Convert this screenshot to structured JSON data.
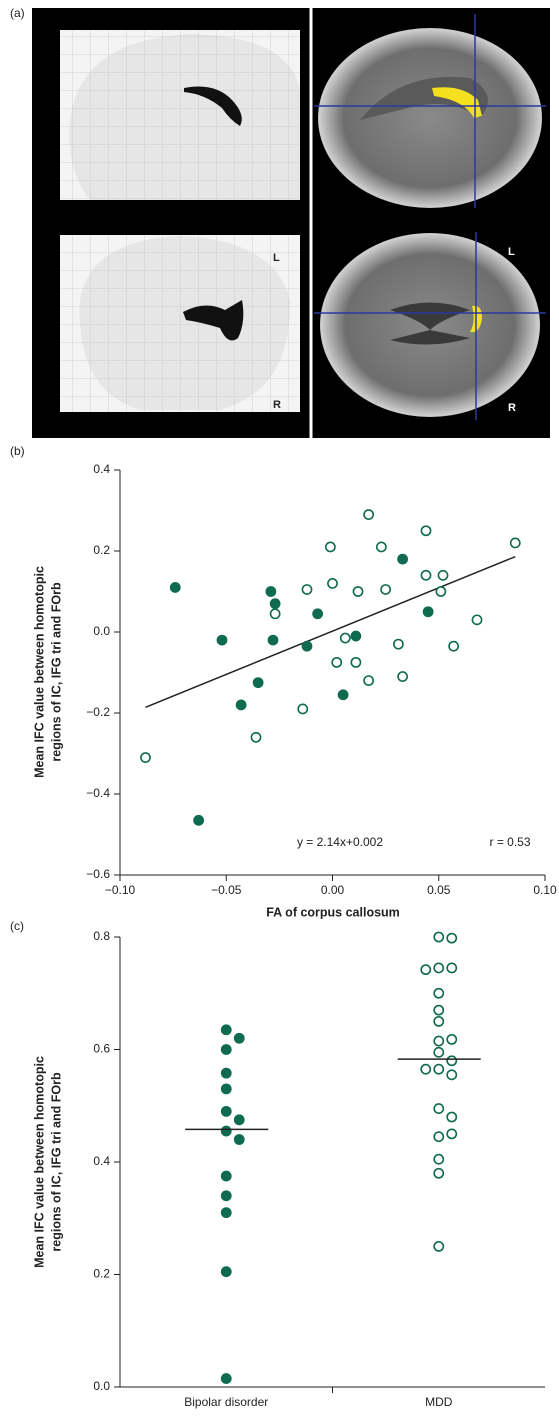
{
  "figure": {
    "panels": [
      "(a)",
      "(b)",
      "(c)"
    ],
    "image_labels": [
      "L",
      "R",
      "L",
      "R"
    ]
  },
  "chart_data": [
    {
      "type": "scatter",
      "ylabel": [
        "Mean IFC value between homotopic",
        "regions of IC, IFG tri and FOrb"
      ],
      "xlabel": "FA of corpus callosum",
      "annotations": [
        "y = 2.14x+0.002",
        "r = 0.53"
      ],
      "xlim": [
        -0.1,
        0.1
      ],
      "ylim": [
        -0.6,
        0.4
      ],
      "xticks": [
        {
          "value": -0.1,
          "label": "−0.10"
        },
        {
          "value": -0.05,
          "label": "−0.05"
        },
        {
          "value": 0.0,
          "label": "0.00"
        },
        {
          "value": 0.05,
          "label": "0.05"
        },
        {
          "value": 0.1,
          "label": "0.10"
        }
      ],
      "yticks": [
        {
          "value": 0.4,
          "label": "0.4"
        },
        {
          "value": 0.2,
          "label": "0.2"
        },
        {
          "value": 0.0,
          "label": "0.0"
        },
        {
          "value": -0.2,
          "label": "−0.2"
        },
        {
          "value": -0.4,
          "label": "−0.4"
        },
        {
          "value": -0.6,
          "label": "−0.6"
        }
      ],
      "series": [
        {
          "color": "#0e6b50",
          "marker": "filled",
          "x": [
            -0.074,
            -0.063,
            -0.052,
            -0.043,
            -0.035,
            -0.029,
            -0.027,
            -0.028,
            -0.012,
            -0.007,
            0.005,
            0.011,
            0.033,
            0.045
          ],
          "values": [
            0.11,
            -0.465,
            -0.02,
            -0.18,
            -0.125,
            0.1,
            0.07,
            -0.02,
            -0.035,
            0.045,
            -0.155,
            -0.01,
            0.18,
            0.05
          ]
        },
        {
          "color": "#0e6b50",
          "marker": "open",
          "x": [
            -0.088,
            -0.036,
            -0.027,
            -0.014,
            -0.012,
            -0.001,
            0.0,
            0.006,
            0.002,
            0.011,
            0.012,
            0.017,
            0.017,
            0.023,
            0.025,
            0.031,
            0.033,
            0.044,
            0.044,
            0.052,
            0.051,
            0.057,
            0.068,
            0.086
          ],
          "values": [
            -0.31,
            -0.26,
            0.045,
            -0.19,
            0.105,
            0.21,
            0.12,
            -0.015,
            -0.075,
            -0.075,
            0.1,
            0.29,
            -0.12,
            0.21,
            0.105,
            -0.03,
            -0.11,
            0.25,
            0.14,
            0.14,
            0.1,
            -0.035,
            0.03,
            0.22
          ]
        }
      ],
      "trend_line": {
        "color": "#222222",
        "x": [
          -0.088,
          0.086
        ],
        "values": [
          -0.186,
          0.186
        ]
      }
    },
    {
      "type": "strip",
      "ylabel": [
        "Mean IFC value between homotopic",
        "regions of IC, IFG tri and FOrb"
      ],
      "categories": [
        "Bipolar disorder",
        "MDD"
      ],
      "ylim": [
        0.0,
        0.8
      ],
      "yticks": [
        {
          "value": 0.0,
          "label": "0.0"
        },
        {
          "value": 0.2,
          "label": "0.2"
        },
        {
          "value": 0.4,
          "label": "0.4"
        },
        {
          "value": 0.6,
          "label": "0.6"
        },
        {
          "value": 0.8,
          "label": "0.8"
        }
      ],
      "series": [
        {
          "color": "#0e6b50",
          "marker": "filled",
          "values": [
            0.635,
            0.62,
            0.6,
            0.558,
            0.53,
            0.49,
            0.475,
            0.455,
            0.44,
            0.375,
            0.34,
            0.31,
            0.205,
            0.015
          ]
        },
        {
          "color": "#0e6b50",
          "marker": "open",
          "values": [
            0.8,
            0.798,
            0.745,
            0.745,
            0.742,
            0.7,
            0.67,
            0.65,
            0.615,
            0.618,
            0.595,
            0.58,
            0.565,
            0.565,
            0.555,
            0.495,
            0.48,
            0.445,
            0.45,
            0.405,
            0.38,
            0.25
          ]
        }
      ],
      "medians": [
        0.458,
        0.583
      ]
    }
  ]
}
